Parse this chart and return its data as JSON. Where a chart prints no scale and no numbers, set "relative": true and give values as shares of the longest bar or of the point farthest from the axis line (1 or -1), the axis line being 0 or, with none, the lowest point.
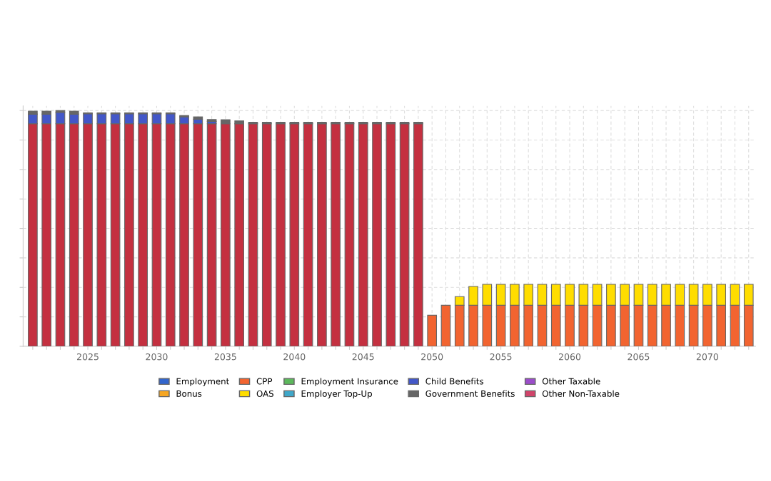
{
  "chart_data": {
    "type": "bar",
    "stacked": true,
    "relative": true,
    "grid": true,
    "legend": "bottom",
    "categories": [
      null,
      null,
      null,
      null,
      "2025",
      null,
      null,
      null,
      null,
      "2030",
      null,
      null,
      null,
      null,
      "2035",
      null,
      null,
      null,
      null,
      "2040",
      null,
      null,
      null,
      null,
      "2045",
      null,
      null,
      null,
      null,
      "2050",
      null,
      null,
      null,
      null,
      "2055",
      null,
      null,
      null,
      null,
      "2060",
      null,
      null,
      null,
      null,
      "2065",
      null,
      null,
      null,
      null,
      "2070",
      null,
      null,
      null
    ],
    "series": [
      {
        "color": "#c43040",
        "values": [
          0.944,
          0.944,
          0.944,
          0.944,
          0.944,
          0.944,
          0.944,
          0.944,
          0.944,
          0.944,
          0.944,
          0.944,
          0.944,
          0.944,
          0.944,
          0.944,
          0.944,
          0.944,
          0.944,
          0.944,
          0.944,
          0.944,
          0.944,
          0.944,
          0.944,
          0.944,
          0.944,
          0.944,
          0.944,
          0,
          0,
          0,
          0,
          0,
          0,
          0,
          0,
          0,
          0,
          0,
          0,
          0,
          0,
          0,
          0,
          0,
          0,
          0,
          0,
          0,
          0,
          0,
          0
        ]
      },
      {
        "name": "Employment",
        "color": "#3366cc",
        "values": [
          0,
          0,
          0,
          0,
          0,
          0,
          0,
          0,
          0,
          0,
          0,
          0,
          0,
          0,
          0,
          0,
          0,
          0,
          0,
          0,
          0,
          0,
          0,
          0,
          0,
          0,
          0,
          0,
          0,
          0,
          0,
          0,
          0,
          0,
          0,
          0,
          0,
          0,
          0,
          0,
          0,
          0,
          0,
          0,
          0,
          0,
          0,
          0,
          0,
          0,
          0,
          0,
          0
        ]
      },
      {
        "name": "Bonus",
        "color": "#f5a623",
        "values": [
          0,
          0,
          0,
          0,
          0,
          0,
          0,
          0,
          0,
          0,
          0,
          0,
          0,
          0,
          0,
          0,
          0,
          0,
          0,
          0,
          0,
          0,
          0,
          0,
          0,
          0,
          0,
          0,
          0,
          0,
          0,
          0,
          0,
          0,
          0,
          0,
          0,
          0,
          0,
          0,
          0,
          0,
          0,
          0,
          0,
          0,
          0,
          0,
          0,
          0,
          0,
          0,
          0
        ]
      },
      {
        "name": "CPP",
        "color": "#f26430",
        "values": [
          0,
          0,
          0,
          0,
          0,
          0,
          0,
          0,
          0,
          0,
          0,
          0,
          0,
          0,
          0,
          0,
          0,
          0,
          0,
          0,
          0,
          0,
          0,
          0,
          0,
          0,
          0,
          0,
          0,
          0.132,
          0.174,
          0.174,
          0.174,
          0.174,
          0.174,
          0.174,
          0.174,
          0.174,
          0.174,
          0.174,
          0.174,
          0.174,
          0.174,
          0.174,
          0.174,
          0.174,
          0.174,
          0.174,
          0.174,
          0.174,
          0.174,
          0.174,
          0.174
        ]
      },
      {
        "name": "OAS",
        "color": "#ffdd00",
        "values": [
          0,
          0,
          0,
          0,
          0,
          0,
          0,
          0,
          0,
          0,
          0,
          0,
          0,
          0,
          0,
          0,
          0,
          0,
          0,
          0,
          0,
          0,
          0,
          0,
          0,
          0,
          0,
          0,
          0,
          0,
          0,
          0.037,
          0.08,
          0.089,
          0.089,
          0.089,
          0.089,
          0.089,
          0.089,
          0.089,
          0.089,
          0.089,
          0.089,
          0.089,
          0.089,
          0.089,
          0.089,
          0.089,
          0.089,
          0.089,
          0.089,
          0.089,
          0.089
        ]
      },
      {
        "name": "Employment Insurance",
        "color": "#5cb85c",
        "values": [
          0,
          0,
          0,
          0,
          0,
          0,
          0,
          0,
          0,
          0,
          0,
          0,
          0,
          0,
          0,
          0,
          0,
          0,
          0,
          0,
          0,
          0,
          0,
          0,
          0,
          0,
          0,
          0,
          0,
          0,
          0,
          0,
          0,
          0,
          0,
          0,
          0,
          0,
          0,
          0,
          0,
          0,
          0,
          0,
          0,
          0,
          0,
          0,
          0,
          0,
          0,
          0,
          0
        ]
      },
      {
        "name": "Employer Top-Up",
        "color": "#3fa7c9",
        "values": [
          0,
          0,
          0,
          0,
          0,
          0,
          0,
          0,
          0,
          0,
          0,
          0,
          0,
          0,
          0,
          0,
          0,
          0,
          0,
          0,
          0,
          0,
          0,
          0,
          0,
          0,
          0,
          0,
          0,
          0,
          0,
          0,
          0,
          0,
          0,
          0,
          0,
          0,
          0,
          0,
          0,
          0,
          0,
          0,
          0,
          0,
          0,
          0,
          0,
          0,
          0,
          0,
          0
        ]
      },
      {
        "name": "Child Benefits",
        "color": "#4357c8",
        "values": [
          0.041,
          0.041,
          0.048,
          0.041,
          0.042,
          0.042,
          0.042,
          0.042,
          0.042,
          0.042,
          0.042,
          0.029,
          0.019,
          0.01,
          0,
          0,
          0,
          0,
          0,
          0,
          0,
          0,
          0,
          0,
          0,
          0,
          0,
          0,
          0,
          0,
          0,
          0,
          0,
          0,
          0,
          0,
          0,
          0,
          0,
          0,
          0,
          0,
          0,
          0,
          0,
          0,
          0,
          0,
          0,
          0,
          0,
          0,
          0
        ]
      },
      {
        "name": "Government Benefits",
        "color": "#666666",
        "values": [
          0.012,
          0.012,
          0.008,
          0.012,
          0.004,
          0.004,
          0.004,
          0.004,
          0.004,
          0.004,
          0.004,
          0.006,
          0.01,
          0.008,
          0.017,
          0.012,
          0.006,
          0.006,
          0.006,
          0.006,
          0.006,
          0.006,
          0.006,
          0.006,
          0.006,
          0.006,
          0.006,
          0.006,
          0.006,
          0,
          0,
          0,
          0,
          0,
          0,
          0,
          0,
          0,
          0,
          0,
          0,
          0,
          0,
          0,
          0,
          0,
          0,
          0,
          0,
          0,
          0,
          0,
          0
        ]
      },
      {
        "name": "Other Taxable",
        "color": "#9b4dca",
        "values": [
          0,
          0,
          0,
          0,
          0,
          0,
          0,
          0,
          0,
          0,
          0,
          0,
          0,
          0,
          0,
          0,
          0,
          0,
          0,
          0,
          0,
          0,
          0,
          0,
          0,
          0,
          0,
          0,
          0,
          0,
          0,
          0,
          0,
          0,
          0,
          0,
          0,
          0,
          0,
          0,
          0,
          0,
          0,
          0,
          0,
          0,
          0,
          0,
          0,
          0,
          0,
          0,
          0
        ]
      },
      {
        "name": "Other Non-Taxable",
        "color": "#d0446a",
        "values": [
          0,
          0,
          0,
          0,
          0,
          0,
          0,
          0,
          0,
          0,
          0,
          0,
          0,
          0,
          0,
          0,
          0,
          0,
          0,
          0,
          0,
          0,
          0,
          0,
          0,
          0,
          0,
          0,
          0,
          0,
          0,
          0,
          0,
          0,
          0,
          0,
          0,
          0,
          0,
          0,
          0,
          0,
          0,
          0,
          0,
          0,
          0,
          0,
          0,
          0,
          0,
          0,
          0
        ]
      }
    ]
  }
}
